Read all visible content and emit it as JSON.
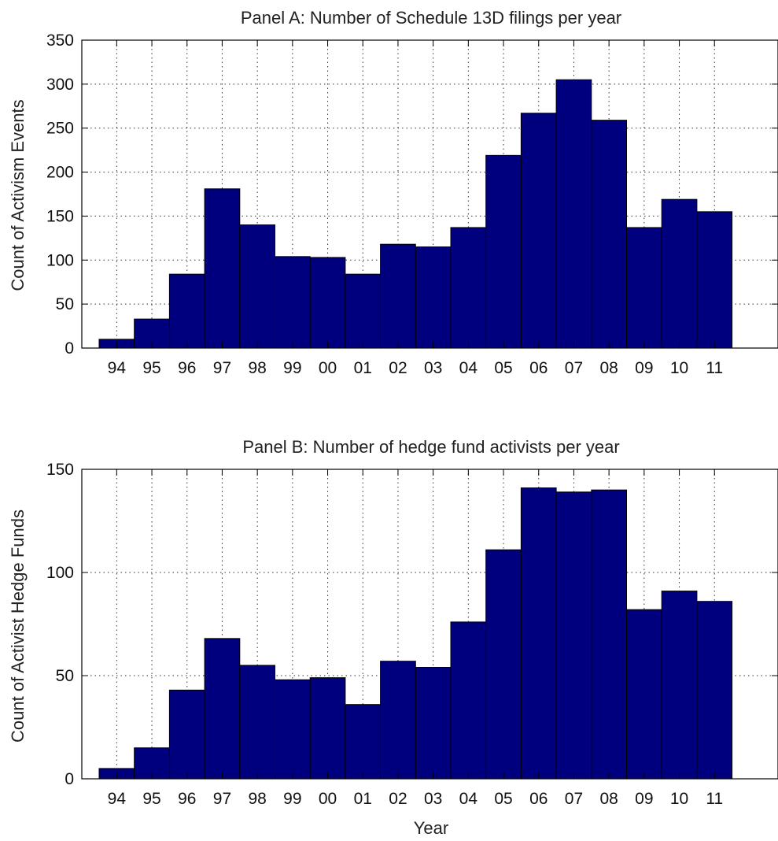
{
  "chart_data": [
    {
      "type": "bar",
      "title": "Panel A: Number of Schedule 13D filings per year",
      "xlabel": "",
      "ylabel": "Count of Activism Events",
      "categories": [
        "94",
        "95",
        "96",
        "97",
        "98",
        "99",
        "00",
        "01",
        "02",
        "03",
        "04",
        "05",
        "06",
        "07",
        "08",
        "09",
        "10",
        "11"
      ],
      "values": [
        10,
        33,
        84,
        181,
        140,
        104,
        103,
        84,
        118,
        115,
        137,
        219,
        267,
        305,
        259,
        137,
        169,
        155
      ],
      "ylim": [
        0,
        350
      ],
      "yticks": [
        0,
        50,
        100,
        150,
        200,
        250,
        300,
        350
      ],
      "grid": true,
      "bar_color": "#00007f"
    },
    {
      "type": "bar",
      "title": "Panel B: Number of hedge fund activists per year",
      "xlabel": "Year",
      "ylabel": "Count of Activist Hedge Funds",
      "categories": [
        "94",
        "95",
        "96",
        "97",
        "98",
        "99",
        "00",
        "01",
        "02",
        "03",
        "04",
        "05",
        "06",
        "07",
        "08",
        "09",
        "10",
        "11"
      ],
      "values": [
        5,
        15,
        43,
        68,
        55,
        48,
        49,
        36,
        57,
        54,
        76,
        111,
        141,
        139,
        140,
        82,
        91,
        86
      ],
      "ylim": [
        0,
        150
      ],
      "yticks": [
        0,
        50,
        100,
        150
      ],
      "grid": true,
      "bar_color": "#00007f"
    }
  ]
}
